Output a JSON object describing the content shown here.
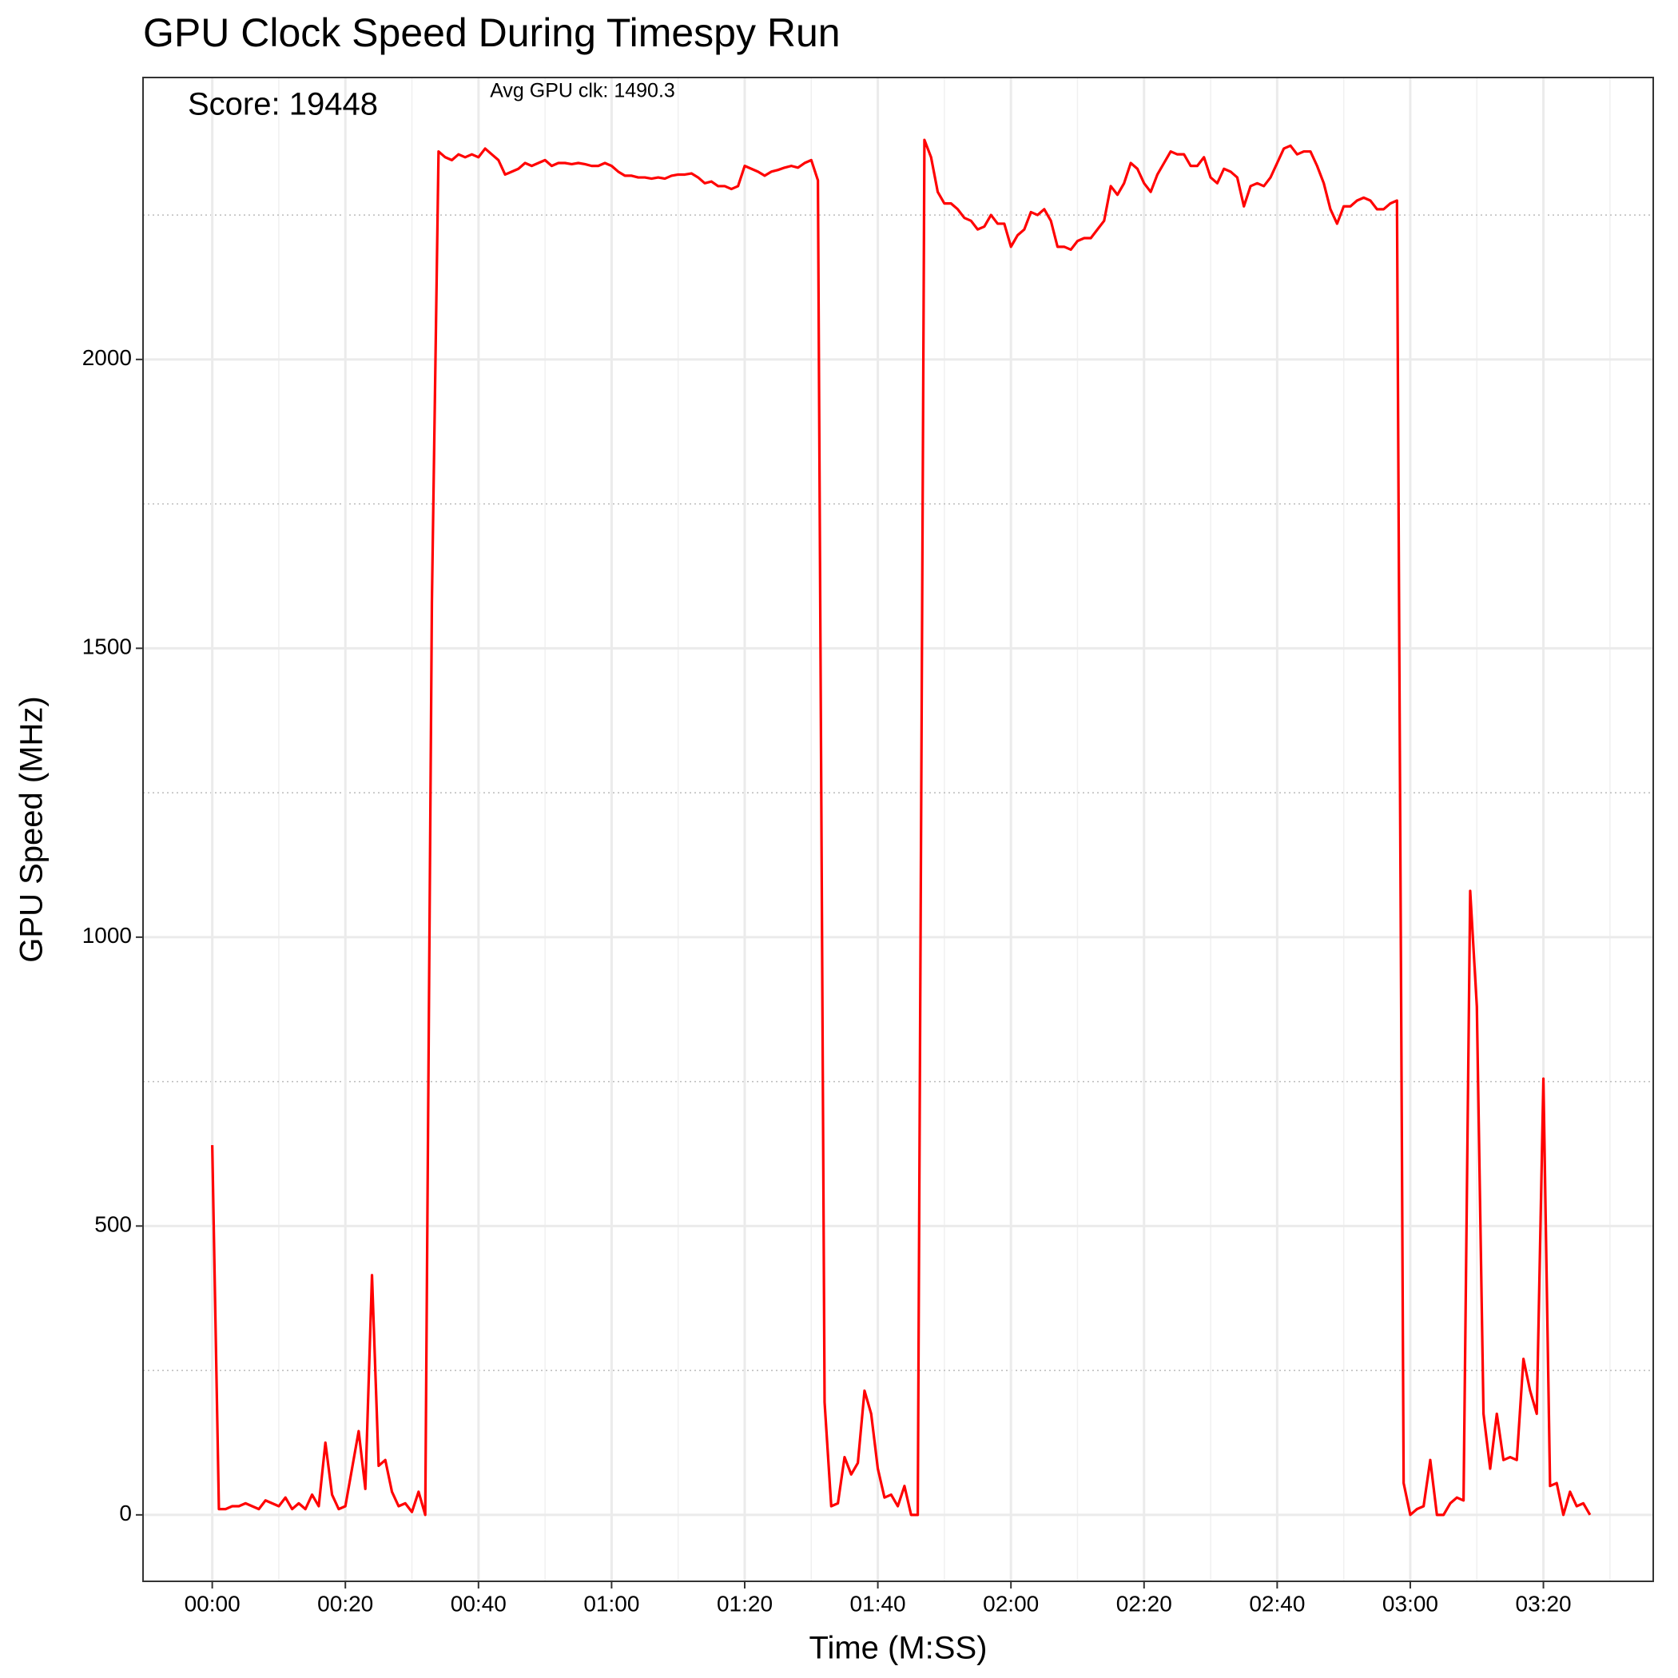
{
  "chart_data": {
    "type": "line",
    "title": "GPU Clock Speed During Timespy Run",
    "x_label": "Time (M:SS)",
    "y_label": "GPU Speed (MHz)",
    "annotations": [
      "Score: 19448",
      "Avg GPU clk: 1490.3"
    ],
    "color": "#ff0000",
    "x": [
      0,
      1,
      2,
      3,
      4,
      5,
      6,
      7,
      8,
      9,
      10,
      11,
      12,
      13,
      14,
      15,
      16,
      17,
      18,
      19,
      20,
      21,
      22,
      23,
      24,
      25,
      26,
      27,
      28,
      29,
      30,
      31,
      32,
      33,
      34,
      35,
      36,
      37,
      38,
      39,
      40,
      41,
      42,
      43,
      44,
      45,
      46,
      47,
      48,
      49,
      50,
      51,
      52,
      53,
      54,
      55,
      56,
      57,
      58,
      59,
      60,
      61,
      62,
      63,
      64,
      65,
      66,
      67,
      68,
      69,
      70,
      71,
      72,
      73,
      74,
      75,
      76,
      77,
      78,
      79,
      80,
      81,
      82,
      83,
      84,
      85,
      86,
      87,
      88,
      89,
      90,
      91,
      92,
      93,
      94,
      95,
      96,
      97,
      98,
      99,
      100,
      101,
      102,
      103,
      104,
      105,
      106,
      107,
      108,
      109,
      110,
      111,
      112,
      113,
      114,
      115,
      116,
      117,
      118,
      119,
      120,
      121,
      122,
      123,
      124,
      125,
      126,
      127,
      128,
      129,
      130,
      131,
      132,
      133,
      134,
      135,
      136,
      137,
      138,
      139,
      140,
      141,
      142,
      143,
      144,
      145,
      146,
      147,
      148,
      149,
      150,
      151,
      152,
      153,
      154,
      155,
      156,
      157,
      158,
      159,
      160,
      161,
      162,
      163,
      164,
      165,
      166,
      167,
      168,
      169,
      170,
      171,
      172,
      173,
      174,
      175,
      176,
      177,
      178,
      179,
      180,
      181,
      182,
      183,
      184,
      185,
      186,
      187,
      188,
      189,
      190,
      191,
      192,
      193,
      194,
      195,
      196,
      197,
      198,
      199,
      200,
      201,
      202,
      203,
      204,
      205,
      206,
      207
    ],
    "values": [
      640,
      10,
      10,
      15,
      15,
      20,
      15,
      10,
      25,
      20,
      15,
      30,
      10,
      20,
      10,
      35,
      15,
      125,
      35,
      10,
      15,
      80,
      145,
      45,
      415,
      85,
      95,
      40,
      15,
      20,
      5,
      40,
      0,
      1580,
      2360,
      2350,
      2345,
      2355,
      2350,
      2355,
      2350,
      2365,
      2355,
      2345,
      2320,
      2325,
      2330,
      2340,
      2335,
      2340,
      2345,
      2335,
      2340,
      2340,
      2338,
      2340,
      2338,
      2335,
      2335,
      2340,
      2335,
      2325,
      2318,
      2318,
      2315,
      2315,
      2313,
      2315,
      2313,
      2318,
      2320,
      2320,
      2322,
      2315,
      2305,
      2308,
      2300,
      2300,
      2295,
      2300,
      2335,
      2330,
      2325,
      2318,
      2325,
      2328,
      2332,
      2335,
      2332,
      2340,
      2345,
      2310,
      195,
      15,
      20,
      100,
      70,
      90,
      215,
      175,
      80,
      30,
      35,
      15,
      50,
      0,
      0,
      2380,
      2350,
      2290,
      2270,
      2270,
      2260,
      2245,
      2240,
      2225,
      2230,
      2250,
      2235,
      2235,
      2195,
      2215,
      2225,
      2255,
      2250,
      2260,
      2240,
      2195,
      2195,
      2190,
      2205,
      2210,
      2210,
      2225,
      2240,
      2300,
      2285,
      2305,
      2340,
      2330,
      2305,
      2290,
      2320,
      2340,
      2360,
      2355,
      2355,
      2335,
      2335,
      2350,
      2315,
      2305,
      2330,
      2325,
      2315,
      2265,
      2300,
      2305,
      2300,
      2315,
      2340,
      2365,
      2370,
      2355,
      2360,
      2360,
      2335,
      2305,
      2260,
      2235,
      2265,
      2265,
      2275,
      2280,
      2275,
      2260,
      2260,
      2270,
      2275,
      55,
      0,
      10,
      15,
      95,
      0,
      0,
      20,
      30,
      25,
      1080,
      880,
      175,
      80,
      175,
      95,
      100,
      95,
      270,
      215,
      175,
      755,
      50,
      55,
      0,
      40,
      15,
      20,
      0
    ],
    "xlim": [
      -10.4,
      216.5
    ],
    "ylim": [
      -115,
      2488
    ],
    "xticks": [
      {
        "value": 0,
        "label": "00:00"
      },
      {
        "value": 20,
        "label": "00:20"
      },
      {
        "value": 40,
        "label": "00:40"
      },
      {
        "value": 60,
        "label": "01:00"
      },
      {
        "value": 80,
        "label": "01:20"
      },
      {
        "value": 100,
        "label": "01:40"
      },
      {
        "value": 120,
        "label": "02:00"
      },
      {
        "value": 140,
        "label": "02:20"
      },
      {
        "value": 160,
        "label": "02:40"
      },
      {
        "value": 180,
        "label": "03:00"
      },
      {
        "value": 200,
        "label": "03:20"
      }
    ],
    "yticks": [
      0,
      500,
      1000,
      1500,
      2000
    ],
    "xminor": [
      10,
      30,
      50,
      70,
      90,
      110,
      130,
      150,
      170,
      190,
      210
    ],
    "yminor": [
      250,
      750,
      1250,
      1750,
      2250
    ],
    "grid": true
  }
}
